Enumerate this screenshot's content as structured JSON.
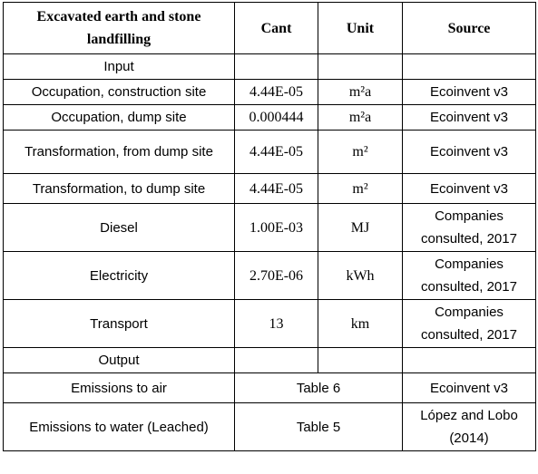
{
  "table": {
    "header": [
      "Excavated earth and stone landfilling",
      "Cant",
      "Unit",
      "Source"
    ],
    "rows": [
      [
        "Input"
      ],
      [
        "Occupation, construction site",
        "4.44E-05",
        "m²a",
        "Ecoinvent v3"
      ],
      [
        "Occupation, dump site",
        "0.000444",
        "m²a",
        "Ecoinvent v3"
      ],
      [
        "Transformation, from dump site",
        "4.44E-05",
        "m²",
        "Ecoinvent v3"
      ],
      [
        "Transformation, to dump site",
        "4.44E-05",
        "m²",
        "Ecoinvent v3"
      ],
      [
        "Diesel",
        "1.00E-03",
        "MJ",
        "Companies consulted, 2017"
      ],
      [
        "Electricity",
        "2.70E-06",
        "kWh",
        "Companies consulted, 2017"
      ],
      [
        "Transport",
        "13",
        "km",
        "Companies consulted, 2017"
      ],
      [
        "Output"
      ],
      [
        "Emissions to air",
        "Table 6",
        "Ecoinvent v3"
      ],
      [
        "Emissions to water (Leached)",
        "Table 5",
        "López and Lobo (2014)"
      ]
    ]
  }
}
